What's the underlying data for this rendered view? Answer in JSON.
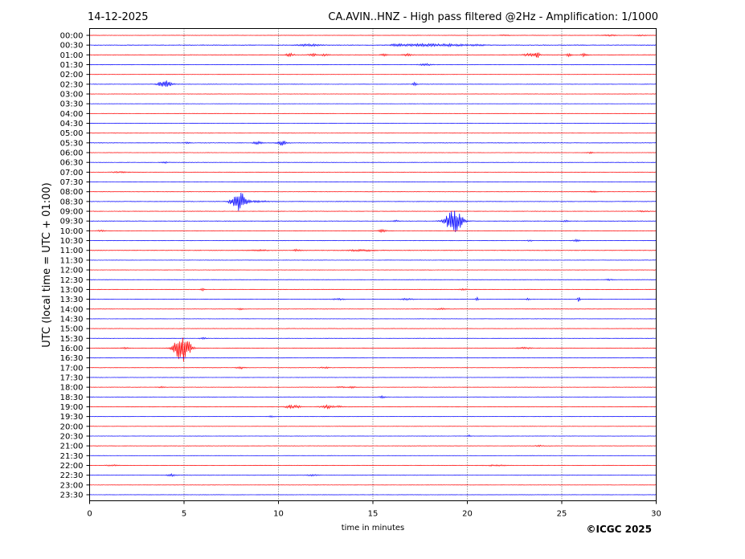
{
  "header": {
    "date": "14-12-2025",
    "title": "CA.AVIN..HNZ - High pass filtered @2Hz - Amplification: 1/1000"
  },
  "footer": {
    "copyright": "©ICGC 2025"
  },
  "chart_data": {
    "type": "line",
    "title": "CA.AVIN..HNZ - High pass filtered @2Hz - Amplification: 1/1000",
    "xlabel": "time in minutes",
    "ylabel": "UTC (local time = UTC + 01:00)",
    "xlim": [
      0,
      30
    ],
    "x_ticks": [
      "0",
      "5",
      "10",
      "15",
      "20",
      "25",
      "30"
    ],
    "grid": "vertical dotted at 5-minute intervals",
    "colors": {
      "red": "#ff0000",
      "blue": "#0000ff"
    },
    "rows": [
      {
        "label": "00:00",
        "color": "red",
        "noise": 0.25,
        "events": [
          [
            27.5,
            0.9,
            0.4
          ],
          [
            29.2,
            0.7,
            0.3
          ],
          [
            22.0,
            0.6,
            0.3
          ]
        ]
      },
      {
        "label": "00:30",
        "color": "blue",
        "noise": 0.45,
        "events": [
          [
            11.6,
            1.2,
            0.6
          ],
          [
            17.7,
            1.4,
            1.2
          ],
          [
            19.3,
            1.1,
            0.6
          ],
          [
            20.5,
            1.0,
            0.4
          ],
          [
            16.3,
            0.9,
            0.4
          ]
        ]
      },
      {
        "label": "01:00",
        "color": "red",
        "noise": 0.4,
        "events": [
          [
            10.6,
            2.0,
            0.2
          ],
          [
            11.8,
            1.6,
            0.2
          ],
          [
            12.5,
            1.2,
            0.2
          ],
          [
            15.6,
            1.2,
            0.2
          ],
          [
            16.8,
            1.3,
            0.2
          ],
          [
            23.3,
            1.8,
            0.3
          ],
          [
            23.7,
            3.6,
            0.12
          ],
          [
            25.4,
            2.0,
            0.15
          ],
          [
            26.2,
            2.2,
            0.15
          ]
        ]
      },
      {
        "label": "01:30",
        "color": "blue",
        "noise": 0.3,
        "events": [
          [
            17.8,
            1.2,
            0.3
          ]
        ]
      },
      {
        "label": "02:00",
        "color": "red",
        "noise": 0.25,
        "events": []
      },
      {
        "label": "02:30",
        "color": "blue",
        "noise": 0.3,
        "events": [
          [
            4.0,
            4.5,
            0.35
          ],
          [
            17.2,
            2.0,
            0.12
          ]
        ]
      },
      {
        "label": "03:00",
        "color": "red",
        "noise": 0.25,
        "events": []
      },
      {
        "label": "03:30",
        "color": "blue",
        "noise": 0.25,
        "events": []
      },
      {
        "label": "04:00",
        "color": "red",
        "noise": 0.25,
        "events": []
      },
      {
        "label": "04:30",
        "color": "blue",
        "noise": 0.25,
        "events": []
      },
      {
        "label": "05:00",
        "color": "red",
        "noise": 0.25,
        "events": []
      },
      {
        "label": "05:30",
        "color": "blue",
        "noise": 0.35,
        "events": [
          [
            8.9,
            2.2,
            0.2
          ],
          [
            10.2,
            3.2,
            0.25
          ],
          [
            5.2,
            0.8,
            0.2
          ]
        ]
      },
      {
        "label": "06:00",
        "color": "red",
        "noise": 0.25,
        "events": [
          [
            26.5,
            0.9,
            0.2
          ]
        ]
      },
      {
        "label": "06:30",
        "color": "blue",
        "noise": 0.3,
        "events": [
          [
            4.0,
            0.9,
            0.2
          ]
        ]
      },
      {
        "label": "07:00",
        "color": "red",
        "noise": 0.3,
        "events": [
          [
            1.6,
            0.8,
            0.4
          ]
        ]
      },
      {
        "label": "07:30",
        "color": "blue",
        "noise": 0.25,
        "events": []
      },
      {
        "label": "08:00",
        "color": "red",
        "noise": 0.3,
        "events": [
          [
            26.6,
            0.8,
            0.3
          ]
        ]
      },
      {
        "label": "08:30",
        "color": "blue",
        "noise": 0.35,
        "events": [
          [
            7.9,
            14.0,
            0.35
          ],
          [
            9.0,
            1.0,
            0.6
          ]
        ]
      },
      {
        "label": "09:00",
        "color": "red",
        "noise": 0.3,
        "events": [
          [
            29.3,
            0.7,
            0.3
          ]
        ]
      },
      {
        "label": "09:30",
        "color": "blue",
        "noise": 0.35,
        "events": [
          [
            19.3,
            14.0,
            0.45
          ],
          [
            16.2,
            0.9,
            0.15
          ],
          [
            25.2,
            0.8,
            0.15
          ]
        ]
      },
      {
        "label": "10:00",
        "color": "red",
        "noise": 0.3,
        "events": [
          [
            15.5,
            1.6,
            0.2
          ],
          [
            0.6,
            0.8,
            0.2
          ]
        ]
      },
      {
        "label": "10:30",
        "color": "blue",
        "noise": 0.3,
        "events": [
          [
            25.8,
            1.3,
            0.2
          ],
          [
            23.3,
            0.8,
            0.15
          ]
        ]
      },
      {
        "label": "11:00",
        "color": "red",
        "noise": 0.4,
        "events": [
          [
            11.0,
            1.4,
            0.2
          ],
          [
            14.4,
            1.0,
            0.8
          ],
          [
            9.0,
            0.8,
            0.5
          ]
        ]
      },
      {
        "label": "11:30",
        "color": "blue",
        "noise": 0.25,
        "events": []
      },
      {
        "label": "12:00",
        "color": "red",
        "noise": 0.25,
        "events": []
      },
      {
        "label": "12:30",
        "color": "blue",
        "noise": 0.25,
        "events": [
          [
            27.5,
            0.8,
            0.2
          ]
        ]
      },
      {
        "label": "13:00",
        "color": "red",
        "noise": 0.3,
        "events": [
          [
            6.0,
            1.3,
            0.1
          ],
          [
            19.8,
            0.9,
            0.2
          ]
        ]
      },
      {
        "label": "13:30",
        "color": "blue",
        "noise": 0.3,
        "events": [
          [
            16.8,
            1.0,
            0.3
          ],
          [
            20.5,
            3.0,
            0.06
          ],
          [
            23.2,
            1.0,
            0.1
          ],
          [
            25.9,
            3.8,
            0.06
          ],
          [
            13.2,
            0.8,
            0.3
          ]
        ]
      },
      {
        "label": "14:00",
        "color": "red",
        "noise": 0.3,
        "events": [
          [
            8.0,
            0.9,
            0.15
          ],
          [
            18.6,
            0.9,
            0.3
          ]
        ]
      },
      {
        "label": "14:30",
        "color": "blue",
        "noise": 0.25,
        "events": []
      },
      {
        "label": "15:00",
        "color": "red",
        "noise": 0.3,
        "events": []
      },
      {
        "label": "15:30",
        "color": "blue",
        "noise": 0.3,
        "events": [
          [
            6.0,
            0.9,
            0.2
          ]
        ]
      },
      {
        "label": "16:00",
        "color": "red",
        "noise": 0.35,
        "events": [
          [
            4.9,
            18.0,
            0.4
          ],
          [
            1.9,
            0.8,
            0.2
          ],
          [
            23.0,
            0.8,
            0.4
          ]
        ]
      },
      {
        "label": "16:30",
        "color": "blue",
        "noise": 0.25,
        "events": []
      },
      {
        "label": "17:00",
        "color": "red",
        "noise": 0.3,
        "events": [
          [
            8.0,
            1.4,
            0.2
          ],
          [
            12.5,
            0.8,
            0.3
          ]
        ]
      },
      {
        "label": "17:30",
        "color": "blue",
        "noise": 0.25,
        "events": []
      },
      {
        "label": "18:00",
        "color": "red",
        "noise": 0.3,
        "events": [
          [
            13.9,
            1.2,
            0.2
          ],
          [
            13.3,
            0.8,
            0.2
          ],
          [
            3.8,
            0.8,
            0.2
          ]
        ]
      },
      {
        "label": "18:30",
        "color": "blue",
        "noise": 0.25,
        "events": [
          [
            15.5,
            1.2,
            0.2
          ]
        ]
      },
      {
        "label": "19:00",
        "color": "red",
        "noise": 0.35,
        "events": [
          [
            10.6,
            1.8,
            0.25
          ],
          [
            11.0,
            1.6,
            0.15
          ],
          [
            12.6,
            2.0,
            0.35
          ],
          [
            13.2,
            1.0,
            0.15
          ]
        ]
      },
      {
        "label": "19:30",
        "color": "blue",
        "noise": 0.25,
        "events": [
          [
            9.6,
            0.8,
            0.2
          ]
        ]
      },
      {
        "label": "20:00",
        "color": "red",
        "noise": 0.25,
        "events": []
      },
      {
        "label": "20:30",
        "color": "blue",
        "noise": 0.25,
        "events": [
          [
            20.1,
            1.2,
            0.1
          ]
        ]
      },
      {
        "label": "21:00",
        "color": "red",
        "noise": 0.3,
        "events": [
          [
            23.8,
            0.8,
            0.2
          ]
        ]
      },
      {
        "label": "21:30",
        "color": "blue",
        "noise": 0.25,
        "events": []
      },
      {
        "label": "22:00",
        "color": "red",
        "noise": 0.3,
        "events": [
          [
            1.2,
            0.8,
            0.3
          ],
          [
            21.5,
            0.8,
            0.5
          ]
        ]
      },
      {
        "label": "22:30",
        "color": "blue",
        "noise": 0.3,
        "events": [
          [
            4.3,
            1.4,
            0.2
          ],
          [
            11.8,
            0.8,
            0.3
          ]
        ]
      },
      {
        "label": "23:00",
        "color": "red",
        "noise": 0.25,
        "events": []
      },
      {
        "label": "23:30",
        "color": "blue",
        "noise": 0.25,
        "events": []
      }
    ]
  }
}
